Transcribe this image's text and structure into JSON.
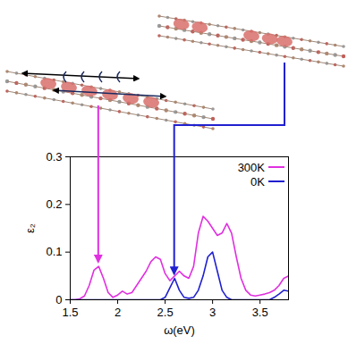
{
  "chart_data": {
    "type": "line",
    "x_label": "ω(eV)",
    "y_label": "ε₂",
    "x": [
      1.5,
      1.55,
      1.6,
      1.65,
      1.7,
      1.75,
      1.8,
      1.85,
      1.9,
      1.95,
      2.0,
      2.05,
      2.1,
      2.15,
      2.2,
      2.25,
      2.3,
      2.35,
      2.4,
      2.45,
      2.5,
      2.55,
      2.6,
      2.65,
      2.7,
      2.75,
      2.8,
      2.85,
      2.9,
      2.95,
      3.0,
      3.05,
      3.1,
      3.15,
      3.2,
      3.25,
      3.3,
      3.35,
      3.4,
      3.45,
      3.5,
      3.55,
      3.6,
      3.65,
      3.7,
      3.75,
      3.8
    ],
    "series": [
      {
        "name": "300K",
        "color": "#e030e0",
        "values": [
          0,
          0,
          0.002,
          0.008,
          0.03,
          0.062,
          0.07,
          0.045,
          0.015,
          0.005,
          0.01,
          0.018,
          0.012,
          0.015,
          0.03,
          0.045,
          0.06,
          0.08,
          0.09,
          0.085,
          0.055,
          0.04,
          0.05,
          0.06,
          0.05,
          0.045,
          0.07,
          0.14,
          0.175,
          0.165,
          0.15,
          0.135,
          0.14,
          0.16,
          0.14,
          0.09,
          0.045,
          0.02,
          0.01,
          0.008,
          0.01,
          0.012,
          0.015,
          0.02,
          0.03,
          0.045,
          0.05
        ]
      },
      {
        "name": "0K",
        "color": "#2020d0",
        "values": [
          0,
          0,
          0,
          0,
          0,
          0,
          0,
          0,
          0,
          0,
          0,
          0,
          0,
          0,
          0,
          0,
          0,
          0,
          0,
          0,
          0.005,
          0.025,
          0.045,
          0.02,
          0.005,
          0.003,
          0.005,
          0.02,
          0.05,
          0.09,
          0.1,
          0.06,
          0.02,
          0.005,
          0,
          0,
          0,
          0,
          0,
          0,
          0,
          0,
          0,
          0.005,
          0.012,
          0.02,
          0.018
        ]
      }
    ],
    "xlim": [
      1.5,
      3.8
    ],
    "ylim": [
      0,
      0.3
    ],
    "xticks": [
      1.5,
      2,
      2.5,
      3,
      3.5
    ],
    "yticks": [
      0,
      0.1,
      0.2,
      0.3
    ],
    "legend": "top-right",
    "arrows": [
      {
        "series": "300K",
        "x": 1.8,
        "y": 0.075
      },
      {
        "series": "0K",
        "x": 2.6,
        "y": 0.05
      }
    ]
  }
}
